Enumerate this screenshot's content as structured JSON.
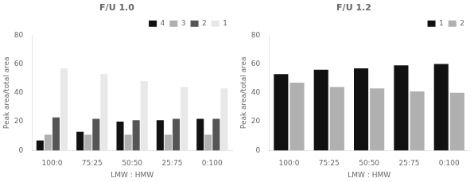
{
  "chart_data": [
    {
      "type": "bar",
      "title": "F/U 1.0",
      "categories": [
        "100:0",
        "75:25",
        "50:50",
        "25:75",
        "0:100"
      ],
      "series": [
        {
          "name": "4",
          "color": "#111111",
          "values": [
            7,
            13,
            20,
            21,
            22
          ]
        },
        {
          "name": "3",
          "color": "#b0b0b0",
          "values": [
            11,
            11,
            11,
            11,
            11
          ]
        },
        {
          "name": "2",
          "color": "#555555",
          "values": [
            23,
            22,
            21,
            22,
            22
          ]
        },
        {
          "name": "1",
          "color": "#e8e8e8",
          "values": [
            57,
            53,
            48,
            44,
            43
          ]
        }
      ],
      "xlabel": "LMW : HMW",
      "ylabel": "Peak area/total area",
      "ylim": [
        0,
        80
      ],
      "yticks": [
        0,
        20,
        40,
        60,
        80
      ],
      "grid": false,
      "legend": "upper right"
    },
    {
      "type": "bar",
      "title": "F/U 1.2",
      "categories": [
        "100:0",
        "75:25",
        "50:50",
        "25:75",
        "0:100"
      ],
      "series": [
        {
          "name": "1",
          "color": "#111111",
          "values": [
            53,
            56,
            57,
            59,
            60
          ]
        },
        {
          "name": "2",
          "color": "#b0b0b0",
          "values": [
            47,
            44,
            43,
            41,
            40
          ]
        }
      ],
      "xlabel": "LMW : HMW",
      "ylabel": "Peak area/total area",
      "ylim": [
        0,
        80
      ],
      "yticks": [
        0,
        20,
        40,
        60,
        80
      ],
      "grid": false,
      "legend": "upper right"
    }
  ]
}
